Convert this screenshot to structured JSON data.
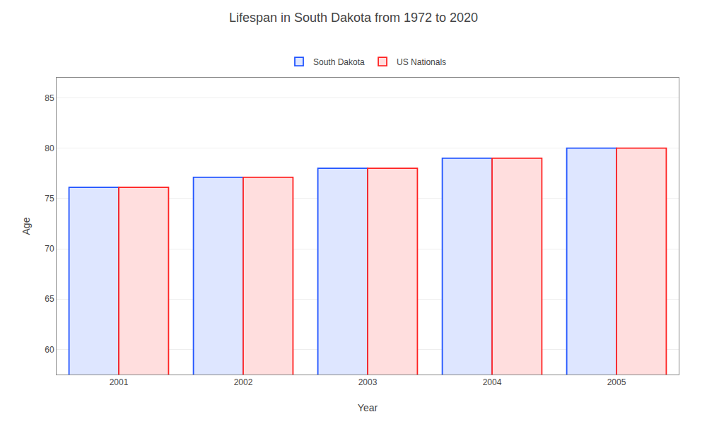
{
  "chart_data": {
    "type": "bar",
    "title": "Lifespan in South Dakota from 1972 to 2020",
    "xlabel": "Year",
    "ylabel": "Age",
    "categories": [
      "2001",
      "2002",
      "2003",
      "2004",
      "2005"
    ],
    "series": [
      {
        "name": "South Dakota",
        "color": "#2255ff",
        "values": [
          76.1,
          77.1,
          78.0,
          79.0,
          80.0
        ]
      },
      {
        "name": "US Nationals",
        "color": "#ff2222",
        "values": [
          76.1,
          77.1,
          78.0,
          79.0,
          80.0
        ]
      }
    ],
    "ylim": [
      57.5,
      87
    ],
    "yticks": [
      60,
      65,
      70,
      75,
      80,
      85
    ],
    "grid": true,
    "legend": "top"
  }
}
